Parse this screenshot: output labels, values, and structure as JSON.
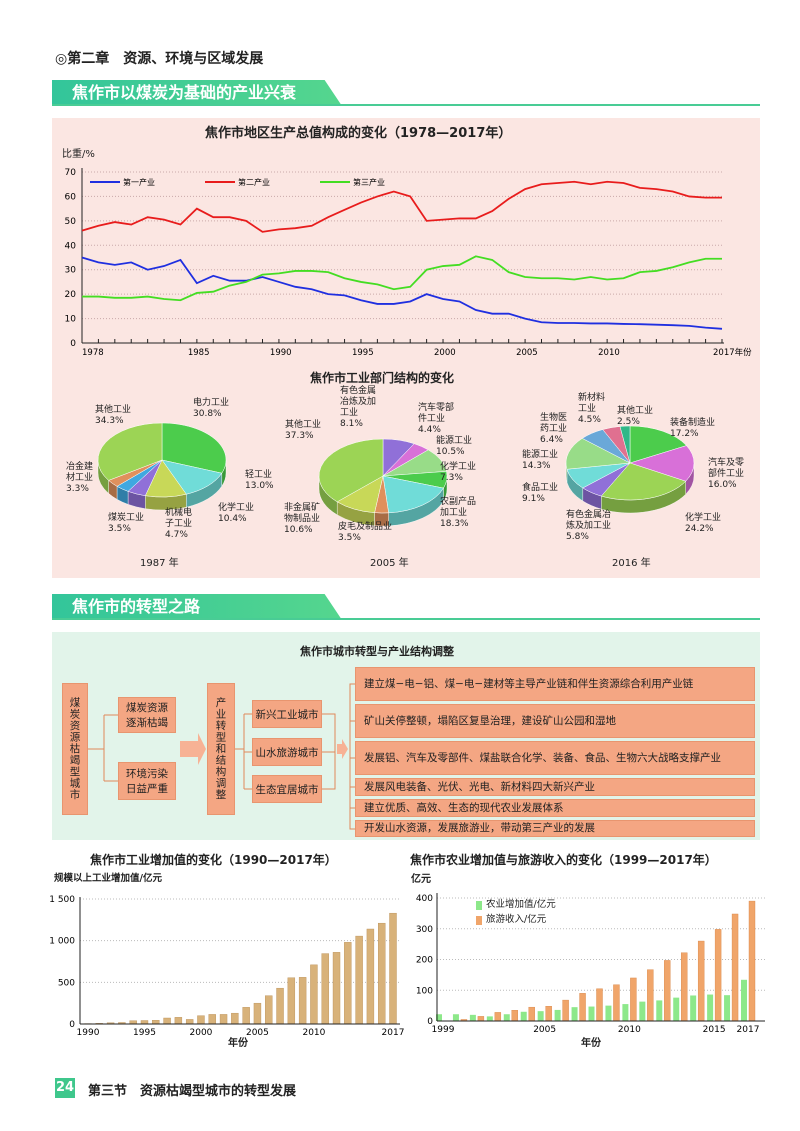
{
  "header": {
    "chapter": "◎第二章　资源、环境与区域发展"
  },
  "section1": {
    "title": "焦作市以煤炭为基础的产业兴衰"
  },
  "section2": {
    "title": "焦作市的转型之路"
  },
  "colors": {
    "banner": "#3fc78c",
    "panel_pink": "#fbe6e2",
    "panel_green": "#e2f4ea",
    "box": "#f4a683",
    "bar_industry": "#d8b27a",
    "bar_agri": "#8de88a",
    "bar_tourism": "#f0a56a"
  },
  "chart_data": [
    {
      "type": "line",
      "title": "焦作市地区生产总值构成的变化（1978—2017年）",
      "ylabel": "比重/%",
      "xlabel": "年份",
      "ylim": [
        0,
        70
      ],
      "xlim": [
        1978,
        2017
      ],
      "yticks": [
        "0",
        "10",
        "20",
        "30",
        "40",
        "50",
        "60",
        "70"
      ],
      "xticks": [
        "1978",
        "1985",
        "1990",
        "1995",
        "2000",
        "2005",
        "2010",
        "2017年份"
      ],
      "grid": "horizontal dotted",
      "legend": "top",
      "x": [
        1978,
        1979,
        1980,
        1981,
        1982,
        1983,
        1984,
        1985,
        1986,
        1987,
        1988,
        1989,
        1990,
        1991,
        1992,
        1993,
        1994,
        1995,
        1996,
        1997,
        1998,
        1999,
        2000,
        2001,
        2002,
        2003,
        2004,
        2005,
        2006,
        2007,
        2008,
        2009,
        2010,
        2011,
        2012,
        2013,
        2014,
        2015,
        2016,
        2017
      ],
      "series": [
        {
          "name": "第一产业",
          "color": "#1f2fe0",
          "values": [
            35,
            33,
            32,
            33,
            30,
            31.5,
            34,
            24.5,
            27.5,
            25.5,
            25.5,
            27,
            25,
            23,
            22,
            20,
            19.5,
            17.5,
            16,
            16,
            17,
            20,
            18,
            17,
            13.5,
            12,
            12,
            10,
            8.5,
            8.2,
            8.2,
            8,
            8,
            7.8,
            7.7,
            7.5,
            7.3,
            7,
            6.3,
            5.8
          ]
        },
        {
          "name": "第二产业",
          "color": "#e81c1c",
          "values": [
            46,
            48,
            49.5,
            48.5,
            51.5,
            50.5,
            48.5,
            55,
            51.5,
            51.5,
            50,
            45.5,
            46.5,
            47,
            48,
            51.5,
            54.5,
            57.5,
            60,
            62,
            60,
            50,
            50.5,
            51,
            51,
            54,
            59,
            63,
            65,
            65.5,
            66,
            65,
            66,
            65.5,
            63.5,
            63,
            62,
            60,
            59.5,
            59.5
          ]
        },
        {
          "name": "第三产业",
          "color": "#44dd22",
          "values": [
            19,
            19,
            18.5,
            18.5,
            19,
            18,
            17.5,
            20.5,
            21,
            23.5,
            25,
            28,
            28.5,
            29.5,
            29.5,
            29,
            26.5,
            25,
            24,
            22,
            23,
            30,
            31.5,
            32,
            35.5,
            34,
            29,
            27,
            26.5,
            26.5,
            26,
            27,
            26,
            26.5,
            29,
            29.5,
            31,
            33,
            34.5,
            34.5
          ]
        }
      ]
    },
    {
      "type": "pie",
      "title": "焦作市工业部门结构的变化",
      "pies": [
        {
          "year": "1987 年",
          "slices": [
            {
              "name": "电力工业",
              "value": 30.8,
              "label": "30.8%",
              "color": "#4ccc4c"
            },
            {
              "name": "轻工业",
              "value": 13.0,
              "label": "13.0%",
              "color": "#70dcd8"
            },
            {
              "name": "化学工业",
              "value": 10.4,
              "label": "10.4%",
              "color": "#c8d858"
            },
            {
              "name": "机械电\n子工业",
              "value": 4.7,
              "label": "4.7%",
              "color": "#9070d8"
            },
            {
              "name": "煤炭工业",
              "value": 3.5,
              "label": "3.5%",
              "color": "#40a8e0"
            },
            {
              "name": "冶金建\n材工业",
              "value": 3.3,
              "label": "3.3%",
              "color": "#e0905c"
            },
            {
              "name": "其他工业",
              "value": 34.3,
              "label": "34.3%",
              "color": "#9cd455"
            }
          ]
        },
        {
          "year": "2005 年",
          "slices": [
            {
              "name": "有色金属\n冶炼及加\n工业",
              "value": 8.1,
              "label": "8.1%",
              "color": "#9070d8"
            },
            {
              "name": "汽车零部\n件工业",
              "value": 4.4,
              "label": "4.4%",
              "color": "#d870d8"
            },
            {
              "name": "能源工业",
              "value": 10.5,
              "label": "10.5%",
              "color": "#98dc88"
            },
            {
              "name": "化学工业",
              "value": 7.3,
              "label": "7.3%",
              "color": "#4ccc4c"
            },
            {
              "name": "农副产品\n加工业",
              "value": 18.3,
              "label": "18.3%",
              "color": "#70dcd8"
            },
            {
              "name": "皮毛及制品业",
              "value": 3.5,
              "label": "3.5%",
              "color": "#e0905c"
            },
            {
              "name": "非金属矿\n物制品业",
              "value": 10.6,
              "label": "10.6%",
              "color": "#c8d858"
            },
            {
              "name": "其他工业",
              "value": 37.3,
              "label": "37.3%",
              "color": "#9cd455"
            }
          ]
        },
        {
          "year": "2016 年",
          "slices": [
            {
              "name": "装备制造业",
              "value": 17.2,
              "label": "17.2%",
              "color": "#4ccc4c"
            },
            {
              "name": "汽车及零\n部件工业",
              "value": 16.0,
              "label": "16.0%",
              "color": "#d870d8"
            },
            {
              "name": "化学工业",
              "value": 24.2,
              "label": "24.2%",
              "color": "#9cd455"
            },
            {
              "name": "有色金属冶\n炼及加工业",
              "value": 5.8,
              "label": "5.8%",
              "color": "#9070d8"
            },
            {
              "name": "食品工业",
              "value": 9.1,
              "label": "9.1%",
              "color": "#70dcd8"
            },
            {
              "name": "能源工业",
              "value": 14.3,
              "label": "14.3%",
              "color": "#98dc88"
            },
            {
              "name": "生物医\n药工业",
              "value": 6.4,
              "label": "6.4%",
              "color": "#6aa8d8"
            },
            {
              "name": "新材料\n工业",
              "value": 4.5,
              "label": "4.5%",
              "color": "#e07090"
            },
            {
              "name": "其他工业",
              "value": 2.5,
              "label": "2.5%",
              "color": "#30b888"
            }
          ]
        }
      ]
    },
    {
      "type": "bar",
      "title": "焦作市工业增加值的变化（1990—2017年）",
      "ylabel": "规模以上工业增加值/亿元",
      "xlabel": "年份",
      "ylim": [
        0,
        1500
      ],
      "yticks": [
        "0",
        "500",
        "1 000",
        "1 500"
      ],
      "xticks": [
        "1990",
        "1995",
        "2000",
        "2005",
        "2010",
        "2017"
      ],
      "categories": [
        1990,
        1991,
        1992,
        1993,
        1994,
        1995,
        1996,
        1997,
        1998,
        1999,
        2000,
        2001,
        2002,
        2003,
        2004,
        2005,
        2006,
        2007,
        2008,
        2009,
        2010,
        2011,
        2012,
        2013,
        2014,
        2015,
        2016,
        2017
      ],
      "values": [
        5,
        8,
        15,
        18,
        40,
        42,
        45,
        72,
        80,
        55,
        100,
        115,
        115,
        130,
        200,
        250,
        340,
        430,
        555,
        560,
        710,
        845,
        860,
        980,
        1055,
        1140,
        1210,
        1330
      ]
    },
    {
      "type": "bar",
      "title": "焦作市农业增加值与旅游收入的变化（1999—2017年）",
      "ylabel": "亿元",
      "xlabel": "年份",
      "ylim": [
        0,
        400
      ],
      "yticks": [
        "0",
        "100",
        "200",
        "300",
        "400"
      ],
      "xticks": [
        "1999",
        "2005",
        "2010",
        "2015",
        "2017"
      ],
      "legend": "top-left",
      "categories": [
        1999,
        2000,
        2001,
        2002,
        2003,
        2004,
        2005,
        2006,
        2007,
        2008,
        2009,
        2010,
        2011,
        2012,
        2013,
        2014,
        2015,
        2016,
        2017
      ],
      "series": [
        {
          "name": "农业增加值/亿元",
          "values": [
            22,
            22,
            20,
            15,
            22,
            30,
            32,
            36,
            45,
            47,
            50,
            55,
            63,
            67,
            76,
            83,
            86,
            84,
            134
          ]
        },
        {
          "name": "旅游收入/亿元",
          "values": [
            0,
            5,
            15,
            28,
            35,
            45,
            48,
            68,
            90,
            105,
            118,
            140,
            167,
            197,
            222,
            260,
            298,
            348,
            390
          ]
        }
      ]
    }
  ],
  "flow": {
    "title": "焦作市城市转型与产业结构调整",
    "origin": "煤炭资源枯竭型城市",
    "causes": [
      "煤炭资源\n逐渐枯竭",
      "环境污染\n日益严重"
    ],
    "transform": "产业转型和结构调整",
    "cities": [
      "新兴工业城市",
      "山水旅游城市",
      "生态宜居城市"
    ],
    "measures": [
      "建立煤−电−铝、煤−电−建材等主导产业链和伴生资源综合利用产业链",
      "矿山关停整顿，塌陷区复垦治理，建设矿山公园和湿地",
      "发展铝、汽车及零部件、煤盐联合化学、装备、食品、生物六大战略支撑产业",
      "发展风电装备、光伏、光电、新材料四大新兴产业",
      "建立优质、高效、生态的现代农业发展体系",
      "开发山水资源，发展旅游业，带动第三产业的发展"
    ]
  },
  "footer": {
    "page": "24",
    "section": "第三节　资源枯竭型城市的转型发展"
  }
}
